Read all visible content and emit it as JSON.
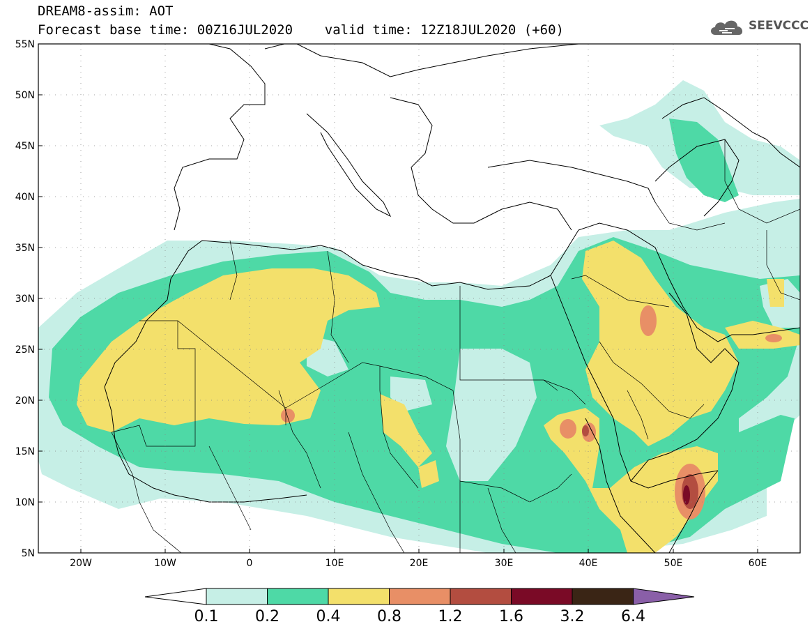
{
  "header": {
    "title": "DREAM8-assim: AOT",
    "subtitle": "Forecast base time: 00Z16JUL2020    valid time: 12Z18JUL2020 (+60)"
  },
  "logo": {
    "text": "SEEVCCC",
    "icon": "cloud-logo-icon"
  },
  "map": {
    "lon_range": [
      -25,
      65
    ],
    "lat_range": [
      5,
      55
    ],
    "lat_ticks": [
      "55N",
      "50N",
      "45N",
      "40N",
      "35N",
      "30N",
      "25N",
      "20N",
      "15N",
      "10N",
      "5N"
    ],
    "lon_ticks": [
      "20W",
      "10W",
      "0",
      "10E",
      "20E",
      "30E",
      "40E",
      "50E",
      "60E"
    ],
    "gridlines": "dotted"
  },
  "colorbar": {
    "labels": [
      "0.1",
      "0.2",
      "0.4",
      "0.8",
      "1.2",
      "1.6",
      "3.2",
      "6.4"
    ],
    "colors": [
      "#ffffff",
      "#c6efe6",
      "#4ed9a6",
      "#f3e06b",
      "#e88f66",
      "#b34d40",
      "#7a0a26",
      "#3a2515",
      "#8a5fa8"
    ]
  }
}
